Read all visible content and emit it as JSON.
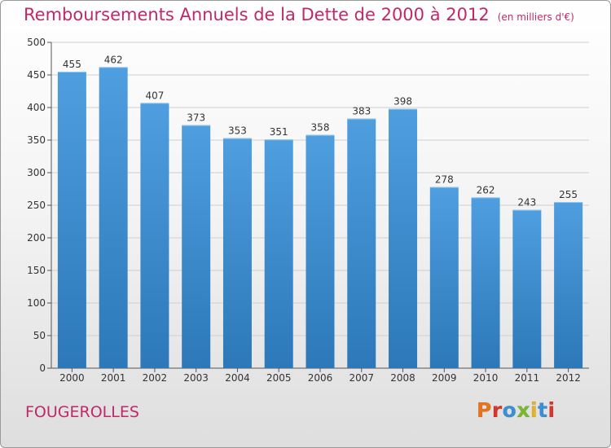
{
  "header": {
    "title": "Remboursements Annuels de la Dette de 2000 à 2012",
    "unit": "(en milliers d'€)"
  },
  "footer": {
    "commune": "FOUGEROLLES",
    "logo_text": "Proxiti",
    "logo_colors": [
      "#e8731b",
      "#d9352a",
      "#3a8fd6",
      "#7ab82e",
      "#e8b31b",
      "#3a8fd6",
      "#d9352a"
    ]
  },
  "chart_data": {
    "type": "bar",
    "title": "Remboursements Annuels de la Dette de 2000 à 2012",
    "subtitle": "(en milliers d'€)",
    "categories": [
      "2000",
      "2001",
      "2002",
      "2003",
      "2004",
      "2005",
      "2006",
      "2007",
      "2008",
      "2009",
      "2010",
      "2011",
      "2012"
    ],
    "values": [
      455,
      462,
      407,
      373,
      353,
      351,
      358,
      383,
      398,
      278,
      262,
      243,
      255
    ],
    "ylim": [
      0,
      500
    ],
    "yticks": [
      0,
      50,
      100,
      150,
      200,
      250,
      300,
      350,
      400,
      450,
      500
    ],
    "grid": true,
    "bar_color": "#4f9edf",
    "bar_color_dark": "#2c78b8"
  }
}
